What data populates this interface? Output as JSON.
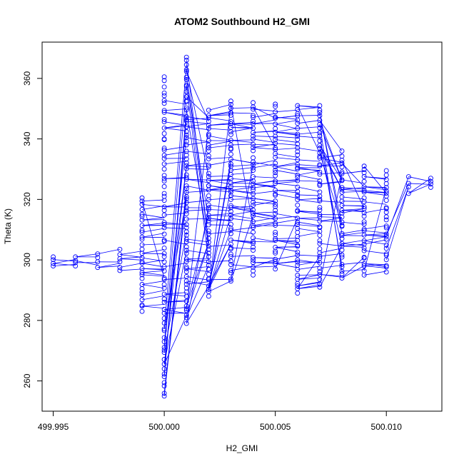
{
  "chart_data": {
    "type": "scatter",
    "title": "ATOM2 Southbound H2_GMI",
    "xlabel": "H2_GMI",
    "ylabel": "Theta (K)",
    "xlim": [
      499.9945,
      500.0125
    ],
    "ylim": [
      250,
      372
    ],
    "x_ticks": [
      {
        "value": 499.995,
        "label": "499.995"
      },
      {
        "value": 500.0,
        "label": "500.000"
      },
      {
        "value": 500.005,
        "label": "500.005"
      },
      {
        "value": 500.01,
        "label": "500.010"
      }
    ],
    "y_ticks": [
      {
        "value": 260,
        "label": "260"
      },
      {
        "value": 280,
        "label": "280"
      },
      {
        "value": 300,
        "label": "300"
      },
      {
        "value": 320,
        "label": "320"
      },
      {
        "value": 340,
        "label": "340"
      },
      {
        "value": 360,
        "label": "360"
      }
    ],
    "grid": false,
    "legend": "none",
    "colors": {
      "series": "#0000ff",
      "axis": "#000000",
      "background": "#ffffff"
    },
    "series": [
      {
        "mode": "lines+markers",
        "columns": [
          {
            "x": 499.995,
            "y_min": 298.0,
            "y_max": 301.0
          },
          {
            "x": 499.996,
            "y_min": 298.0,
            "y_max": 301.0
          },
          {
            "x": 499.997,
            "y_min": 297.5,
            "y_max": 302.0
          },
          {
            "x": 499.998,
            "y_min": 296.5,
            "y_max": 303.5
          },
          {
            "x": 499.999,
            "y_min": 283.0,
            "y_max": 320.5
          },
          {
            "x": 500.0,
            "y_min": 255.0,
            "y_max": 360.5
          },
          {
            "x": 500.001,
            "y_min": 279.0,
            "y_max": 367.0
          },
          {
            "x": 500.002,
            "y_min": 288.0,
            "y_max": 349.5
          },
          {
            "x": 500.003,
            "y_min": 293.0,
            "y_max": 352.5
          },
          {
            "x": 500.004,
            "y_min": 295.0,
            "y_max": 352.0
          },
          {
            "x": 500.005,
            "y_min": 297.0,
            "y_max": 351.5
          },
          {
            "x": 500.006,
            "y_min": 289.0,
            "y_max": 351.0
          },
          {
            "x": 500.007,
            "y_min": 291.0,
            "y_max": 351.0
          },
          {
            "x": 500.008,
            "y_min": 294.0,
            "y_max": 336.0
          },
          {
            "x": 500.009,
            "y_min": 295.0,
            "y_max": 331.0
          },
          {
            "x": 500.01,
            "y_min": 296.0,
            "y_max": 329.5
          },
          {
            "x": 500.011,
            "y_min": 322.0,
            "y_max": 327.5
          },
          {
            "x": 500.012,
            "y_min": 324.0,
            "y_max": 327.0
          }
        ]
      }
    ]
  }
}
